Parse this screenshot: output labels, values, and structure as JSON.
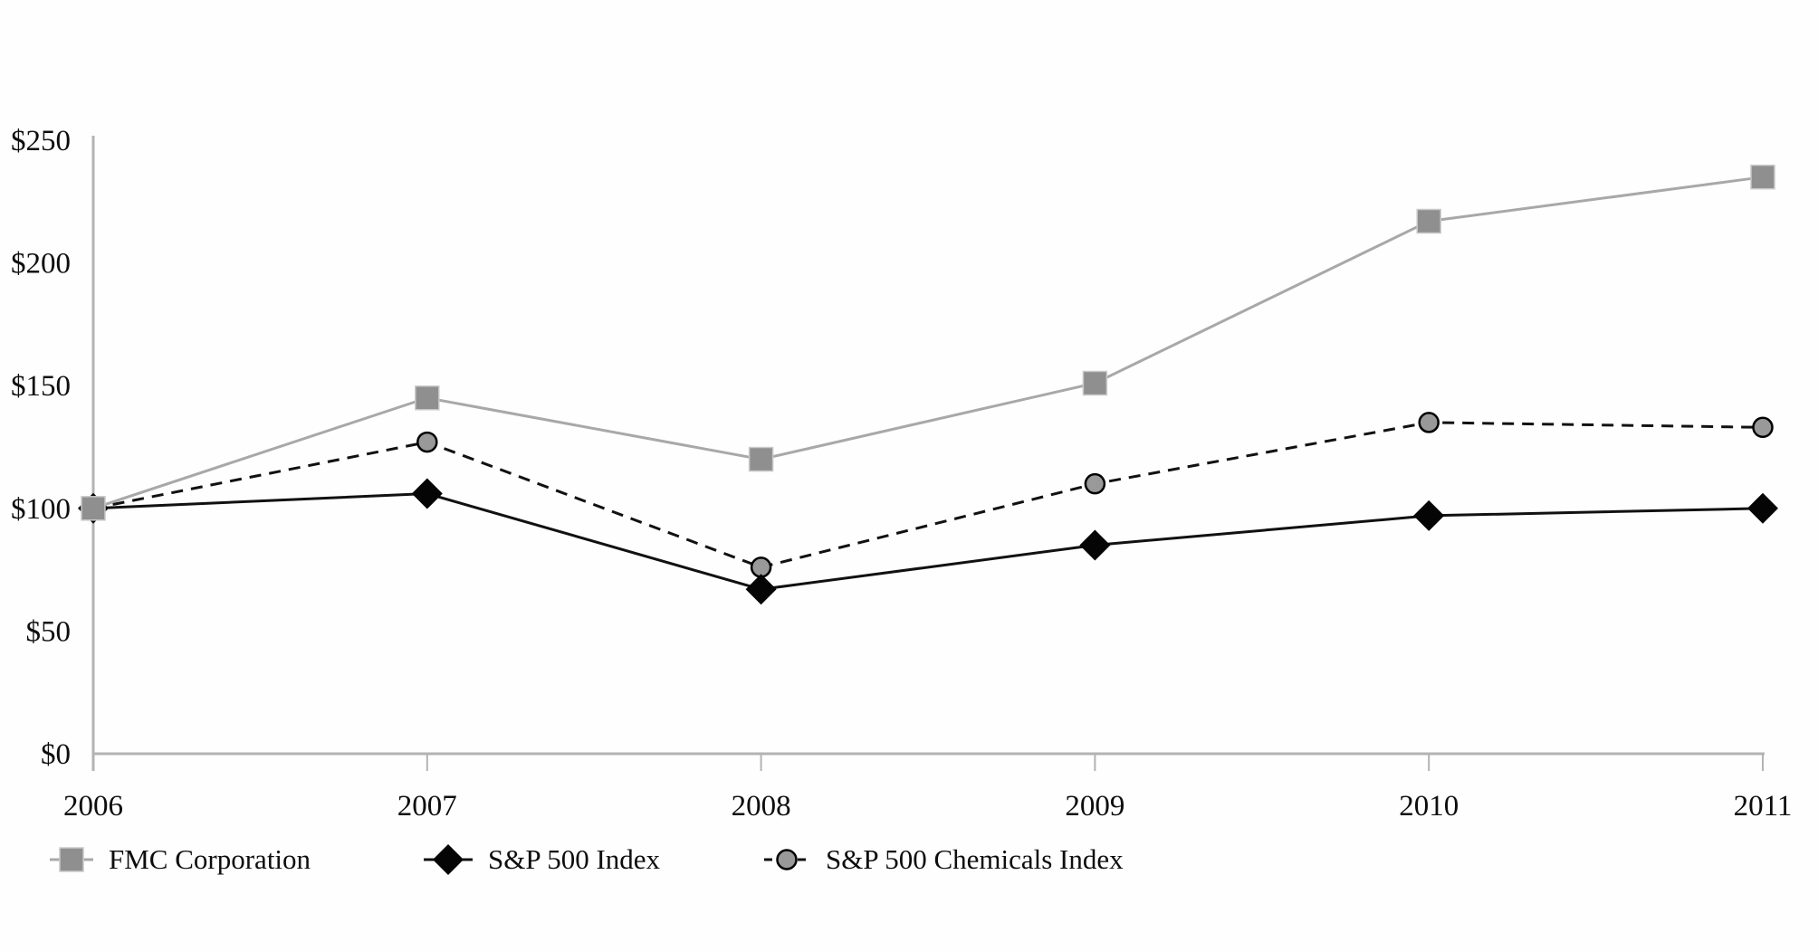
{
  "chart_data": {
    "type": "line",
    "title": "",
    "x": [
      2006,
      2007,
      2008,
      2009,
      2010,
      2011
    ],
    "x_tick_labels": [
      "2006",
      "2007",
      "2008",
      "2009",
      "2010",
      "2011"
    ],
    "y_tick_labels": [
      "$0",
      "$50",
      "$100",
      "$150",
      "$200",
      "$250"
    ],
    "ylim": [
      0,
      250
    ],
    "y_tick_step": 50,
    "grid": false,
    "legend_position": "bottom-left",
    "series": [
      {
        "name": "S&P 500 Chemicals Index",
        "values": [
          100,
          127,
          76,
          110,
          135,
          133
        ],
        "marker": "circle",
        "marker_fill": "#999999",
        "marker_stroke": "#000000",
        "line_color": "#111111",
        "line_style": "dashed"
      },
      {
        "name": "S&P 500 Index",
        "values": [
          100,
          106,
          67,
          85,
          97,
          100
        ],
        "marker": "diamond",
        "marker_fill": "#050505",
        "marker_stroke": "#050505",
        "line_color": "#111111",
        "line_style": "solid"
      },
      {
        "name": "FMC Corporation",
        "values": [
          100,
          145,
          120,
          151,
          217,
          235
        ],
        "marker": "square",
        "marker_fill": "#8f8f8f",
        "marker_stroke": "#c9c9c9",
        "line_color": "#a8a8a8",
        "line_style": "solid"
      }
    ],
    "axis_color": "#b3b3b3",
    "text_color": "#0d0d0d"
  },
  "legend": {
    "items": [
      {
        "label": "FMC Corporation"
      },
      {
        "label": "S&P 500 Index"
      },
      {
        "label": "S&P 500 Chemicals Index"
      }
    ]
  }
}
